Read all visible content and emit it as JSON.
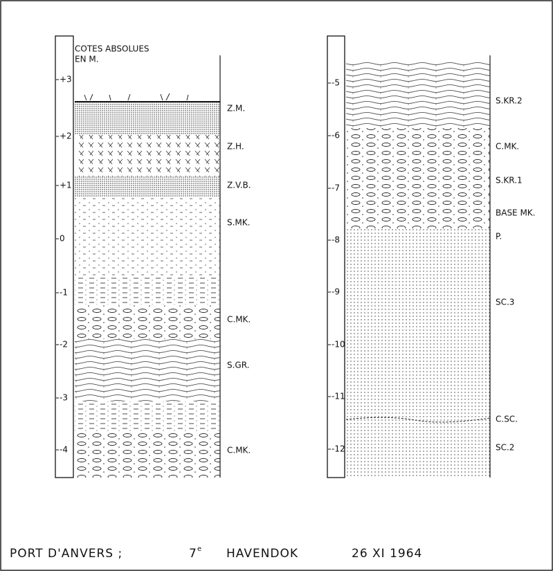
{
  "columns": [
    {
      "header": [
        "COTES ABSOLUES",
        "EN M."
      ],
      "scale": [
        "+3",
        "+2",
        "+1",
        "0",
        "-1",
        "-2",
        "-3",
        "-4"
      ],
      "layers": [
        "Z.M.",
        "Z.H.",
        "Z.V.B.",
        "S.MK.",
        "C.MK.",
        "S.GR.",
        "C.MK."
      ]
    },
    {
      "scale": [
        "-5",
        "-6",
        "-7",
        "-8",
        "-9",
        "-10",
        "-11",
        "-12"
      ],
      "layers": [
        "S.KR.2",
        "C.MK.",
        "S.KR.1",
        "BASE MK.",
        "P.",
        "SC.3",
        "C.SC.",
        "SC.2"
      ]
    }
  ],
  "footer": {
    "place": "PORT D'ANVERS ;",
    "ordinal": "7",
    "ordinal_suffix": "e",
    "dock": "HAVENDOK",
    "date": "26 XI 1964"
  }
}
